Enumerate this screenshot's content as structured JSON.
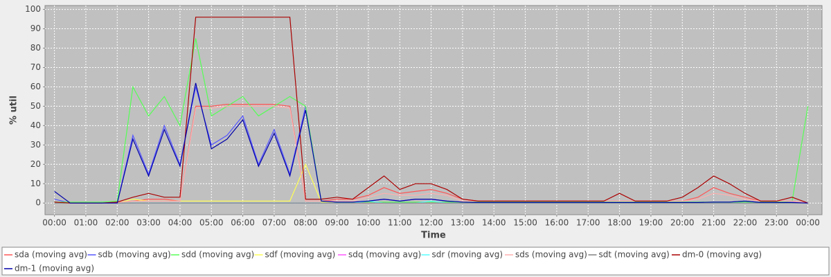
{
  "chart_data": {
    "type": "line",
    "x_label": "Time",
    "y_label": "% util",
    "x": [
      0,
      0.5,
      1,
      1.5,
      2,
      2.5,
      3,
      3.5,
      4,
      4.5,
      5,
      5.5,
      6,
      6.5,
      7,
      7.5,
      8,
      8.5,
      9,
      9.5,
      10,
      10.5,
      11,
      11.5,
      12,
      12.5,
      13,
      13.5,
      14,
      14.5,
      15,
      15.5,
      16,
      16.5,
      17,
      17.5,
      18,
      18.5,
      19,
      19.5,
      20,
      20.5,
      21,
      21.5,
      22,
      22.5,
      23,
      23.5,
      24
    ],
    "xlim": [
      -0.3,
      24.45
    ],
    "xticks": [
      {
        "value": 0,
        "label": "00:00"
      },
      {
        "value": 1,
        "label": "01:00"
      },
      {
        "value": 2,
        "label": "02:00"
      },
      {
        "value": 3,
        "label": "03:00"
      },
      {
        "value": 4,
        "label": "04:00"
      },
      {
        "value": 5,
        "label": "05:00"
      },
      {
        "value": 6,
        "label": "06:00"
      },
      {
        "value": 7,
        "label": "07:00"
      },
      {
        "value": 8,
        "label": "08:00"
      },
      {
        "value": 9,
        "label": "09:00"
      },
      {
        "value": 10,
        "label": "10:00"
      },
      {
        "value": 11,
        "label": "11:00"
      },
      {
        "value": 12,
        "label": "12:00"
      },
      {
        "value": 13,
        "label": "13:00"
      },
      {
        "value": 14,
        "label": "14:00"
      },
      {
        "value": 15,
        "label": "15:00"
      },
      {
        "value": 16,
        "label": "16:00"
      },
      {
        "value": 17,
        "label": "17:00"
      },
      {
        "value": 18,
        "label": "18:00"
      },
      {
        "value": 19,
        "label": "19:00"
      },
      {
        "value": 20,
        "label": "20:00"
      },
      {
        "value": 21,
        "label": "21:00"
      },
      {
        "value": 22,
        "label": "22:00"
      },
      {
        "value": 23,
        "label": "23:00"
      },
      {
        "value": 24,
        "label": "00:00"
      }
    ],
    "ylim": [
      -6,
      102
    ],
    "yticks": [
      0,
      10,
      20,
      30,
      40,
      50,
      60,
      70,
      80,
      90,
      100
    ],
    "grid": true,
    "legend": "bottom",
    "series": [
      {
        "name": "sda (moving avg)",
        "color": "#ff5555",
        "values": [
          0.5,
          0,
          0,
          0,
          0.5,
          1,
          2,
          2,
          1,
          50,
          50,
          51,
          51,
          51,
          51,
          50,
          1,
          1,
          2,
          2,
          4,
          8,
          5,
          6,
          7,
          5,
          2,
          1,
          1,
          1,
          1,
          1,
          1,
          1,
          1,
          1,
          1,
          1,
          1,
          1,
          1,
          3,
          8,
          5,
          3,
          1,
          1,
          1,
          0
        ]
      },
      {
        "name": "sdb (moving avg)",
        "color": "#5555ff",
        "values": [
          2,
          0,
          0,
          0,
          0,
          35,
          15,
          40,
          20,
          60,
          30,
          35,
          45,
          20,
          38,
          15,
          50,
          1,
          0.5,
          0.5,
          1,
          2,
          1,
          2,
          2,
          1,
          0.5,
          0.3,
          0.3,
          0.3,
          0.3,
          0.3,
          0.3,
          0.3,
          0.3,
          0.3,
          0.3,
          0.3,
          0.3,
          0.3,
          0.3,
          0.3,
          0.5,
          0.5,
          1,
          0.3,
          0.3,
          0.3,
          0
        ]
      },
      {
        "name": "sdd (moving avg)",
        "color": "#55ff55",
        "values": [
          0.5,
          0.5,
          0.5,
          0.5,
          1,
          60,
          45,
          55,
          40,
          85,
          45,
          50,
          55,
          45,
          50,
          55,
          50,
          1,
          0.5,
          0.5,
          0.5,
          0.5,
          0.5,
          0.5,
          0.5,
          0.5,
          0.5,
          0.5,
          0.5,
          0.5,
          0.5,
          0.5,
          0.5,
          0.5,
          0.5,
          0.5,
          0.5,
          0.5,
          0.5,
          0.5,
          0.5,
          0.5,
          0.5,
          0.5,
          0.5,
          0.5,
          0.5,
          1,
          50
        ]
      },
      {
        "name": "sdf (moving avg)",
        "color": "#ffff55",
        "values": [
          0,
          0,
          0,
          0,
          0,
          2,
          1,
          1,
          1,
          1,
          1,
          1,
          1,
          1,
          1,
          1,
          20,
          0.5,
          0,
          0,
          0,
          0,
          0,
          0,
          0,
          0,
          0,
          0,
          0,
          0,
          0,
          0,
          0,
          0,
          0,
          0,
          0,
          0,
          0,
          0,
          0,
          0,
          0,
          0,
          0,
          0,
          0,
          0,
          0
        ]
      },
      {
        "name": "sdq (moving avg)",
        "color": "#ff55ff",
        "values": [
          0,
          0,
          0,
          0,
          0,
          0,
          0,
          0,
          0,
          0,
          0,
          0,
          0,
          0,
          0,
          0,
          0,
          0,
          0,
          0,
          0,
          0,
          0,
          0,
          0,
          0,
          0,
          0,
          0,
          0,
          0,
          0,
          0,
          0,
          0,
          0,
          0,
          0,
          0,
          0,
          0,
          0,
          0,
          0,
          0,
          0,
          0,
          0,
          0
        ]
      },
      {
        "name": "sdr (moving avg)",
        "color": "#55ffff",
        "values": [
          0,
          0,
          0,
          0,
          0,
          0,
          0,
          0,
          0,
          0,
          0,
          0,
          0,
          0,
          0,
          0,
          0,
          0,
          0,
          0,
          1,
          0,
          0,
          0,
          1,
          0,
          0,
          0,
          0,
          0,
          0,
          0,
          0,
          0,
          0,
          0,
          0,
          0,
          0,
          0,
          0,
          0,
          0,
          0,
          0,
          0,
          0,
          0,
          0
        ]
      },
      {
        "name": "sds (moving avg)",
        "color": "#ffafaf",
        "values": [
          0.3,
          0,
          0,
          0,
          0.3,
          1,
          1,
          1,
          1,
          49,
          49,
          50,
          50,
          50,
          50,
          49,
          1,
          1,
          1,
          1,
          3,
          5,
          4,
          4,
          5,
          4,
          1,
          1,
          1,
          1,
          1,
          1,
          1,
          1,
          1,
          1,
          1,
          1,
          1,
          1,
          1,
          2,
          5,
          4,
          2,
          1,
          1,
          1,
          0
        ]
      },
      {
        "name": "sdt (moving avg)",
        "color": "#808080",
        "values": [
          0,
          0,
          0,
          0,
          0,
          0,
          0,
          0,
          0,
          0,
          0,
          0,
          0,
          0,
          0,
          0,
          0,
          0,
          0,
          0,
          0,
          0,
          0,
          0,
          0,
          0,
          0,
          0,
          0,
          0,
          0,
          0,
          0,
          0,
          0,
          0,
          0,
          0,
          0,
          0,
          0,
          0,
          0,
          0,
          0,
          0,
          0,
          0,
          0
        ]
      },
      {
        "name": "dm-0 (moving avg)",
        "color": "#aa0000",
        "values": [
          0.5,
          0,
          0,
          0,
          0.5,
          3,
          5,
          3,
          3,
          96,
          96,
          96,
          96,
          96,
          96,
          96,
          2,
          2,
          3,
          2,
          8,
          14,
          7,
          10,
          10,
          7,
          2,
          1,
          1,
          1,
          1,
          1,
          1,
          1,
          1,
          1,
          5,
          1,
          1,
          1,
          3,
          8,
          14,
          10,
          5,
          1,
          1,
          3,
          0
        ]
      },
      {
        "name": "dm-1 (moving avg)",
        "color": "#0000aa",
        "values": [
          6,
          0,
          0,
          0,
          0,
          33,
          14,
          38,
          19,
          62,
          28,
          33,
          43,
          19,
          36,
          14,
          48,
          1,
          0.5,
          0.5,
          1,
          2,
          1,
          2,
          2,
          1,
          0.5,
          0.3,
          0.3,
          0.3,
          0.3,
          0.3,
          0.3,
          0.3,
          0.3,
          0.3,
          0.3,
          0.3,
          0.3,
          0.3,
          0.3,
          0.3,
          0.5,
          0.5,
          1,
          0.3,
          0.3,
          0.3,
          0
        ]
      }
    ]
  }
}
